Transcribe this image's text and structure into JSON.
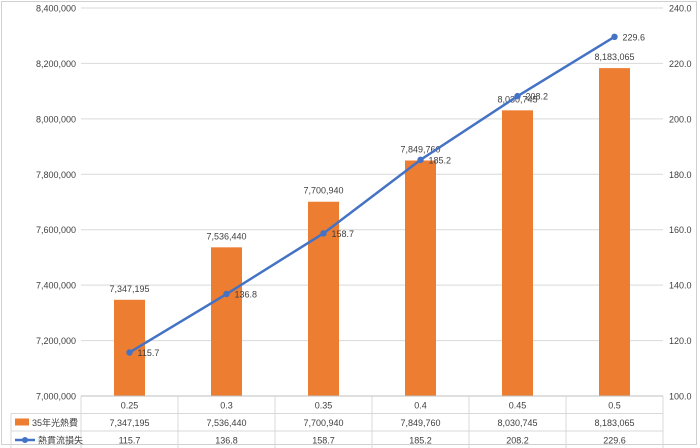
{
  "chart_data": {
    "type": "bar",
    "categories": [
      "0.25",
      "0.3",
      "0.35",
      "0.4",
      "0.45",
      "0.5"
    ],
    "series": [
      {
        "name": "35年光熱費",
        "type": "bar",
        "axis": "left",
        "color": "#ed7d31",
        "values": [
          7347195,
          7536440,
          7700940,
          7849760,
          8030745,
          8183065
        ],
        "labels": [
          "7,347,195",
          "7,536,440",
          "7,700,940",
          "7,849,760",
          "8,030,745",
          "8,183,065"
        ]
      },
      {
        "name": "熱貫流損失",
        "type": "line",
        "axis": "right",
        "color": "#4472c4",
        "values": [
          115.7,
          136.8,
          158.7,
          185.2,
          208.2,
          229.6
        ],
        "labels": [
          "115.7",
          "136.8",
          "158.7",
          "185.2",
          "208.2",
          "229.6"
        ]
      }
    ],
    "y_left": {
      "ylim": [
        7000000,
        8400000
      ],
      "ticks": [
        "7,000,000",
        "7,200,000",
        "7,400,000",
        "7,600,000",
        "7,800,000",
        "8,000,000",
        "8,200,000",
        "8,400,000"
      ]
    },
    "y_right": {
      "ylim": [
        100,
        240
      ],
      "ticks": [
        "100.0",
        "120.0",
        "140.0",
        "160.0",
        "180.0",
        "200.0",
        "220.0",
        "240.0"
      ]
    },
    "grid": true,
    "legend": "data-table"
  }
}
